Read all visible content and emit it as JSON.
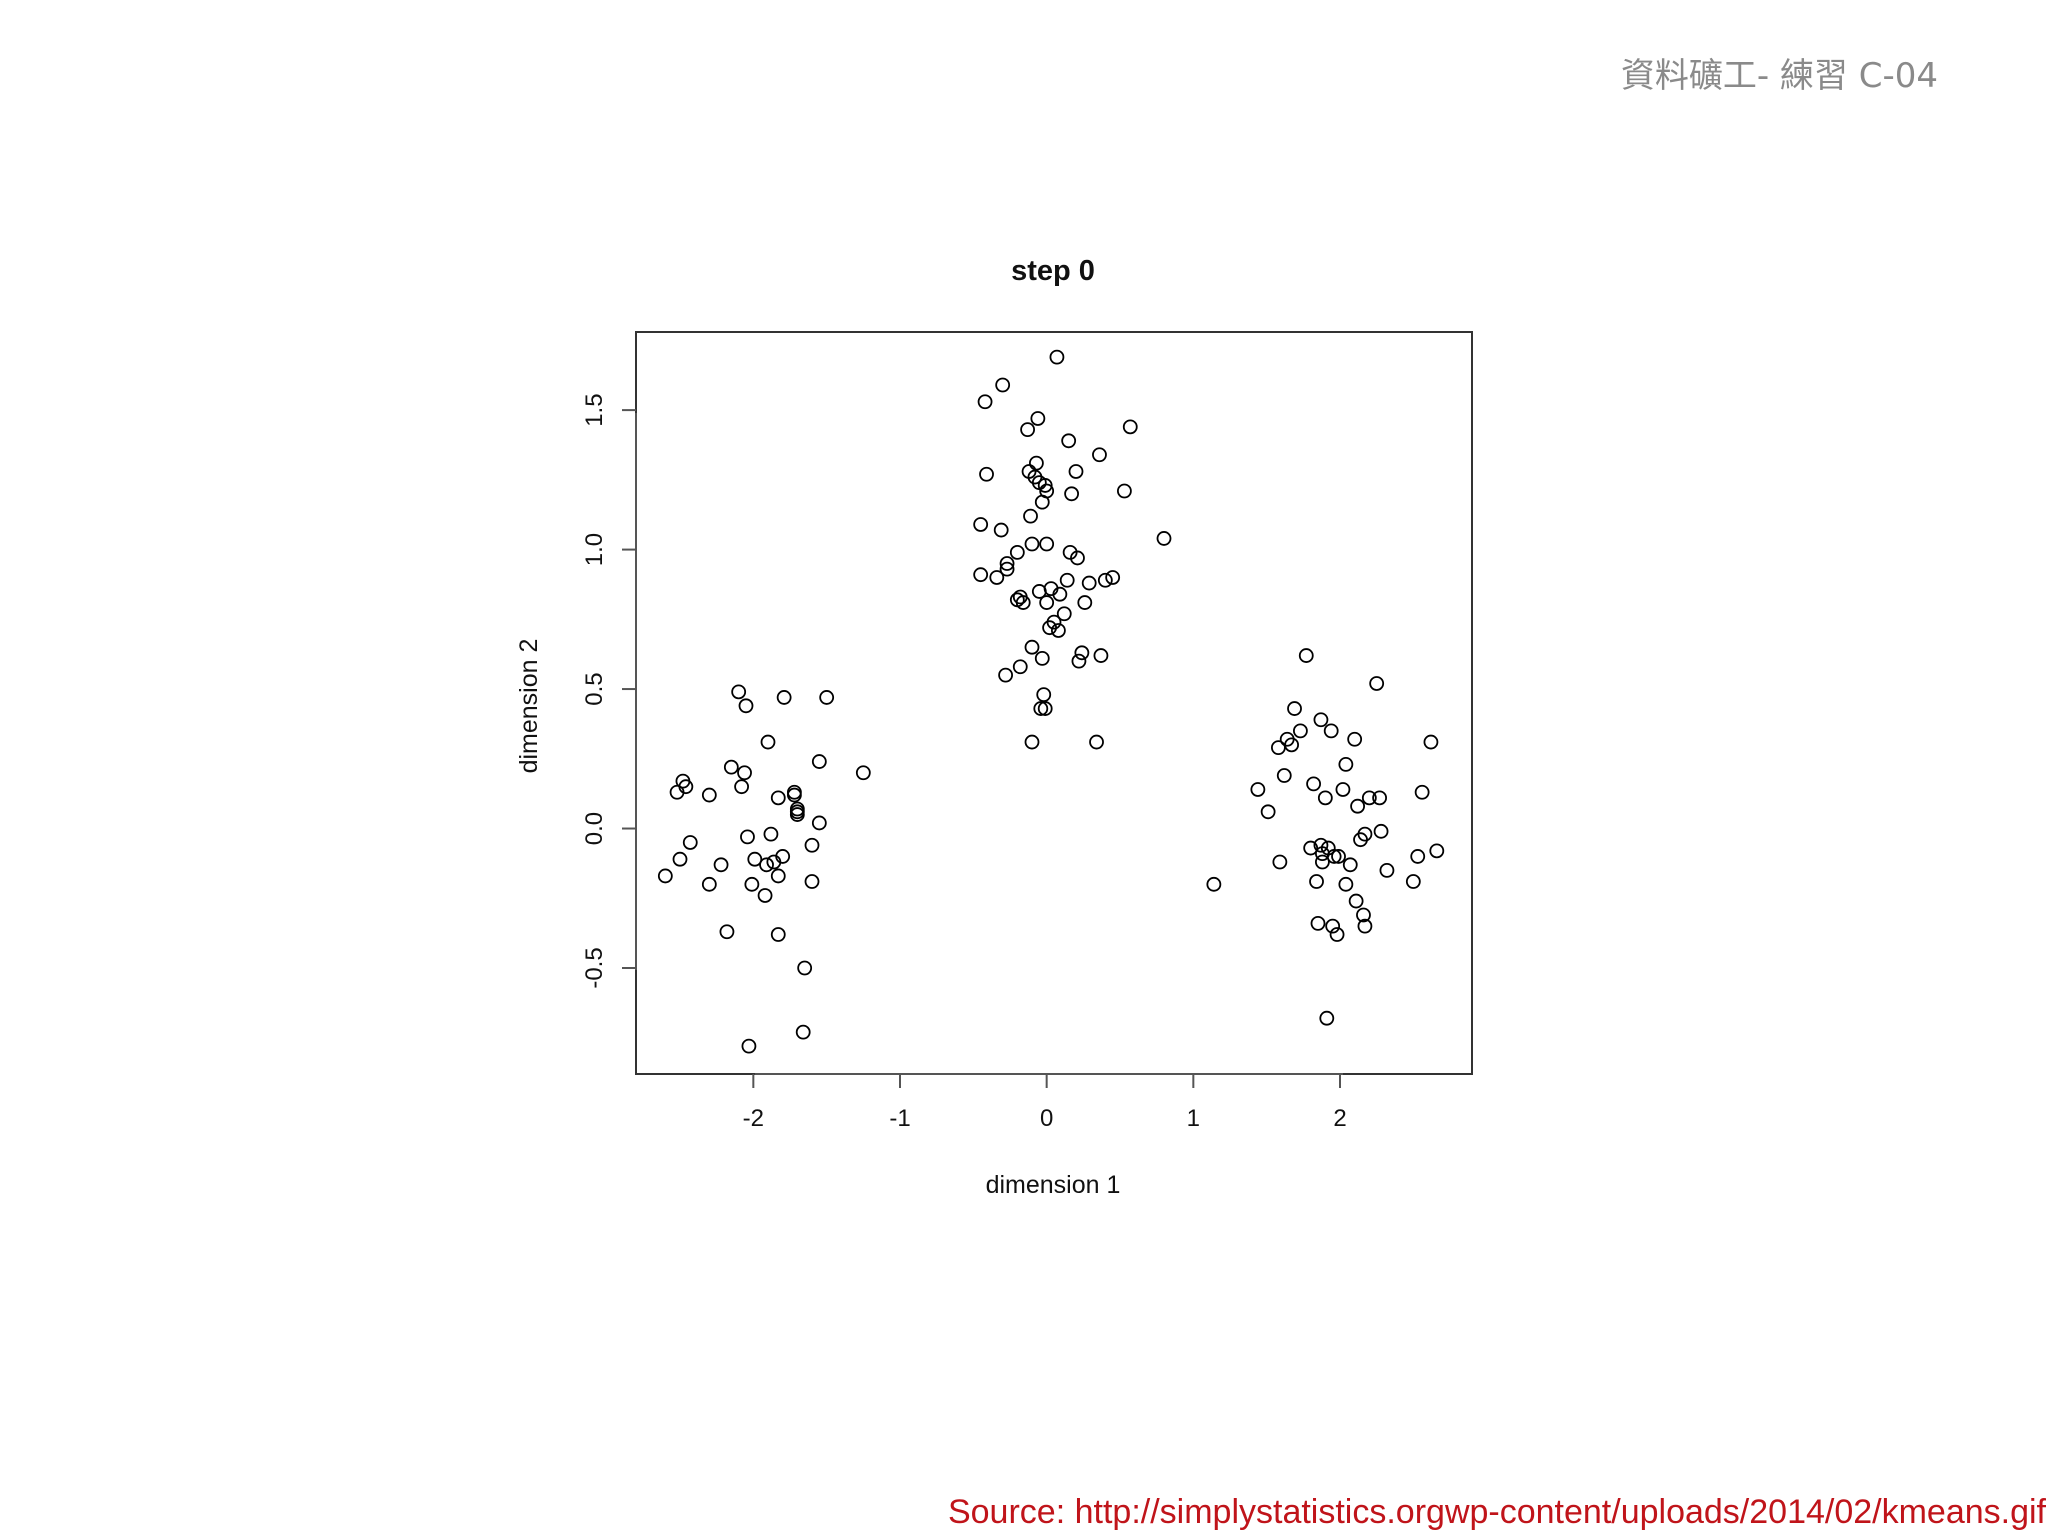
{
  "slide": {
    "header": "資料礦工- 練習 C-04",
    "source_label": "Source:",
    "source_url": "http://simplystatistics.orgwp-content/uploads/2014/02/kmeans.gif"
  },
  "chart_data": {
    "type": "scatter",
    "title": "step 0",
    "xlabel": "dimension 1",
    "ylabel": "dimension 2",
    "xlim": [
      -2.8,
      2.9
    ],
    "ylim": [
      -0.88,
      1.78
    ],
    "xticks": [
      -2,
      -1,
      0,
      1,
      2
    ],
    "xtick_labels": [
      "-2",
      "-1",
      "0",
      "1",
      "2"
    ],
    "yticks": [
      -0.5,
      0.0,
      0.5,
      1.0,
      1.5
    ],
    "ytick_labels": [
      "-0.5",
      "0.0",
      "0.5",
      "1.0",
      "1.5"
    ],
    "grid": false,
    "marker": "open-circle",
    "point_color": "#000000",
    "points": [
      [
        -2.6,
        -0.17
      ],
      [
        -2.52,
        0.13
      ],
      [
        -2.48,
        0.17
      ],
      [
        -2.46,
        0.15
      ],
      [
        -2.5,
        -0.11
      ],
      [
        -2.43,
        -0.05
      ],
      [
        -2.3,
        0.12
      ],
      [
        -2.3,
        -0.2
      ],
      [
        -2.22,
        -0.13
      ],
      [
        -2.18,
        -0.37
      ],
      [
        -2.15,
        0.22
      ],
      [
        -2.1,
        0.49
      ],
      [
        -2.08,
        0.15
      ],
      [
        -2.06,
        0.2
      ],
      [
        -2.05,
        0.44
      ],
      [
        -2.04,
        -0.03
      ],
      [
        -2.03,
        -0.78
      ],
      [
        -2.01,
        -0.2
      ],
      [
        -1.99,
        -0.11
      ],
      [
        -1.92,
        -0.24
      ],
      [
        -1.91,
        -0.13
      ],
      [
        -1.9,
        0.31
      ],
      [
        -1.88,
        -0.02
      ],
      [
        -1.86,
        -0.12
      ],
      [
        -1.83,
        0.11
      ],
      [
        -1.83,
        -0.17
      ],
      [
        -1.83,
        -0.38
      ],
      [
        -1.8,
        -0.1
      ],
      [
        -1.79,
        0.47
      ],
      [
        -1.72,
        0.12
      ],
      [
        -1.72,
        0.13
      ],
      [
        -1.7,
        0.07
      ],
      [
        -1.7,
        0.06
      ],
      [
        -1.7,
        0.05
      ],
      [
        -1.66,
        -0.73
      ],
      [
        -1.65,
        -0.5
      ],
      [
        -1.6,
        -0.19
      ],
      [
        -1.6,
        -0.06
      ],
      [
        -1.55,
        0.24
      ],
      [
        -1.55,
        0.02
      ],
      [
        -1.5,
        0.47
      ],
      [
        -1.25,
        0.2
      ],
      [
        -0.45,
        1.09
      ],
      [
        -0.45,
        0.91
      ],
      [
        -0.42,
        1.53
      ],
      [
        -0.41,
        1.27
      ],
      [
        -0.34,
        0.9
      ],
      [
        -0.31,
        1.07
      ],
      [
        -0.3,
        1.59
      ],
      [
        -0.28,
        0.55
      ],
      [
        -0.27,
        0.93
      ],
      [
        -0.27,
        0.95
      ],
      [
        -0.2,
        0.99
      ],
      [
        -0.2,
        0.82
      ],
      [
        -0.18,
        0.58
      ],
      [
        -0.18,
        0.83
      ],
      [
        -0.16,
        0.81
      ],
      [
        -0.13,
        1.43
      ],
      [
        -0.12,
        1.28
      ],
      [
        -0.11,
        1.12
      ],
      [
        -0.1,
        1.02
      ],
      [
        -0.1,
        0.65
      ],
      [
        -0.1,
        0.31
      ],
      [
        -0.08,
        1.26
      ],
      [
        -0.07,
        1.31
      ],
      [
        -0.06,
        1.47
      ],
      [
        -0.05,
        0.85
      ],
      [
        -0.05,
        1.24
      ],
      [
        -0.04,
        0.43
      ],
      [
        -0.03,
        0.61
      ],
      [
        -0.03,
        1.17
      ],
      [
        -0.02,
        0.48
      ],
      [
        -0.01,
        0.43
      ],
      [
        -0.01,
        1.23
      ],
      [
        0.0,
        1.21
      ],
      [
        0.0,
        1.02
      ],
      [
        0.0,
        0.81
      ],
      [
        0.02,
        0.72
      ],
      [
        0.03,
        0.86
      ],
      [
        0.05,
        0.74
      ],
      [
        0.07,
        1.69
      ],
      [
        0.08,
        0.71
      ],
      [
        0.09,
        0.84
      ],
      [
        0.12,
        0.77
      ],
      [
        0.14,
        0.89
      ],
      [
        0.15,
        1.39
      ],
      [
        0.16,
        0.99
      ],
      [
        0.17,
        1.2
      ],
      [
        0.2,
        1.28
      ],
      [
        0.21,
        0.97
      ],
      [
        0.22,
        0.6
      ],
      [
        0.24,
        0.63
      ],
      [
        0.26,
        0.81
      ],
      [
        0.29,
        0.88
      ],
      [
        0.34,
        0.31
      ],
      [
        0.36,
        1.34
      ],
      [
        0.37,
        0.62
      ],
      [
        0.4,
        0.89
      ],
      [
        0.45,
        0.9
      ],
      [
        0.53,
        1.21
      ],
      [
        0.57,
        1.44
      ],
      [
        0.8,
        1.04
      ],
      [
        1.14,
        -0.2
      ],
      [
        1.44,
        0.14
      ],
      [
        1.51,
        0.06
      ],
      [
        1.58,
        0.29
      ],
      [
        1.59,
        -0.12
      ],
      [
        1.62,
        0.19
      ],
      [
        1.64,
        0.32
      ],
      [
        1.67,
        0.3
      ],
      [
        1.69,
        0.43
      ],
      [
        1.73,
        0.35
      ],
      [
        1.77,
        0.62
      ],
      [
        1.8,
        -0.07
      ],
      [
        1.82,
        0.16
      ],
      [
        1.84,
        -0.19
      ],
      [
        1.85,
        -0.34
      ],
      [
        1.87,
        -0.06
      ],
      [
        1.87,
        0.39
      ],
      [
        1.88,
        -0.09
      ],
      [
        1.88,
        -0.12
      ],
      [
        1.9,
        0.11
      ],
      [
        1.91,
        -0.68
      ],
      [
        1.92,
        -0.07
      ],
      [
        1.94,
        0.35
      ],
      [
        1.95,
        -0.35
      ],
      [
        1.96,
        -0.1
      ],
      [
        1.98,
        -0.38
      ],
      [
        1.99,
        -0.1
      ],
      [
        2.02,
        0.14
      ],
      [
        2.04,
        0.23
      ],
      [
        2.04,
        -0.2
      ],
      [
        2.07,
        -0.13
      ],
      [
        2.1,
        0.32
      ],
      [
        2.11,
        -0.26
      ],
      [
        2.12,
        0.08
      ],
      [
        2.14,
        -0.04
      ],
      [
        2.16,
        -0.31
      ],
      [
        2.17,
        -0.02
      ],
      [
        2.17,
        -0.35
      ],
      [
        2.2,
        0.11
      ],
      [
        2.25,
        0.52
      ],
      [
        2.27,
        0.11
      ],
      [
        2.28,
        -0.01
      ],
      [
        2.32,
        -0.15
      ],
      [
        2.5,
        -0.19
      ],
      [
        2.53,
        -0.1
      ],
      [
        2.56,
        0.13
      ],
      [
        2.62,
        0.31
      ],
      [
        2.66,
        -0.08
      ]
    ]
  }
}
